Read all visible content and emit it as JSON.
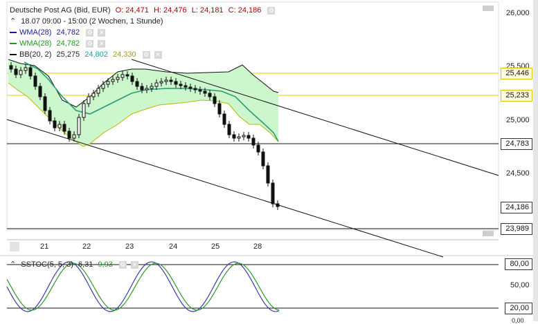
{
  "header": {
    "title": "Deutsche Post AG (Bid, EUR)",
    "ohlc": {
      "open": "O: 24,471",
      "high": "H: 24,476",
      "low": "L: 24,181",
      "close": "C: 24,186"
    },
    "period": "18.07 09:00 - 15:00 (2 Wochen, 1 Stunde)"
  },
  "indicators": [
    {
      "label": "WMA(28)",
      "value": "24,782",
      "color": "#1a1aa0"
    },
    {
      "label": "WMA(28)",
      "value": "24,782",
      "color": "#1a9a1a"
    },
    {
      "label": "BB(20, 2)",
      "value": "25,275",
      "value2": "24,802",
      "value3": "24,330",
      "color": "#111111"
    }
  ],
  "price_axis": {
    "labels": [
      "26,000",
      "25,500",
      "25,000",
      "24,500"
    ],
    "tags": [
      {
        "text": "25,446",
        "style": "yellow"
      },
      {
        "text": "25,233",
        "style": "yellow"
      },
      {
        "text": "24,783",
        "style": "plain"
      },
      {
        "text": "24,186",
        "style": "plain"
      },
      {
        "text": "23,989",
        "style": "plain"
      }
    ]
  },
  "time_axis": [
    "21",
    "22",
    "23",
    "24",
    "25",
    "28"
  ],
  "oscillator": {
    "label": "SSTOC(5, 5, 3)",
    "value1": "6,31",
    "value2": "9,93",
    "axis": [
      "80,00",
      "50,00",
      "20,00",
      "0,00"
    ]
  },
  "colors": {
    "bb_fill": "#ccf7cc",
    "wma_line": "#2a9a78",
    "bb_band": "#b8b800",
    "hline_yellow": "#e0d000",
    "candle": "#111111"
  },
  "chart_data": {
    "type": "line",
    "x": [
      "21",
      "22",
      "23",
      "24",
      "25",
      "28"
    ],
    "series": [],
    "ylim": [
      23.9,
      26.1
    ]
  }
}
